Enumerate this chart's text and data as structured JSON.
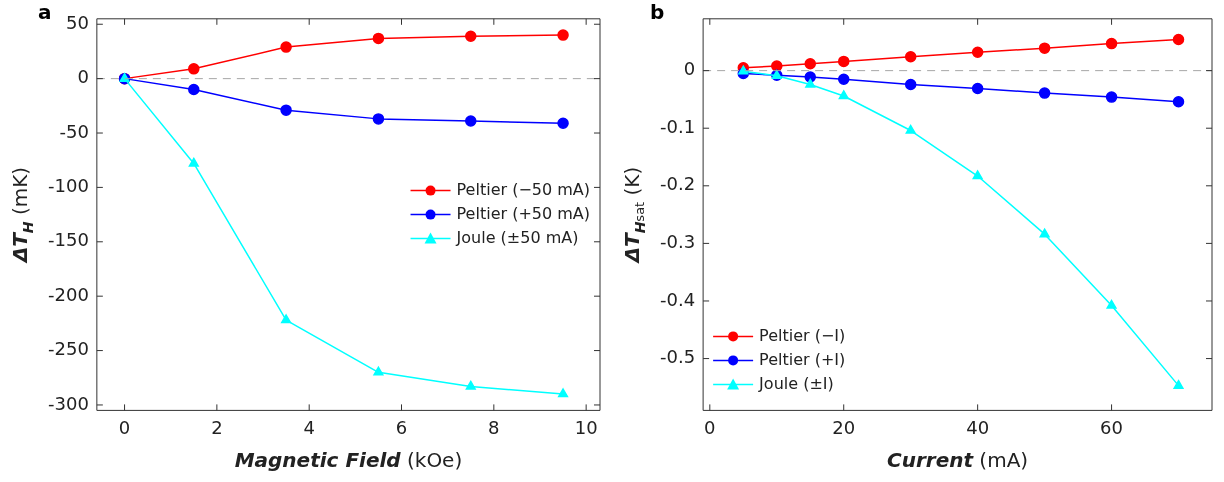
{
  "chart_data": [
    {
      "type": "line",
      "title": "a",
      "xlabel": "Magnetic Field (kOe)",
      "ylabel": "ΔT$_{H}$ (mK)",
      "x": [
        0,
        1.5,
        3.5,
        5.5,
        7.5,
        9.5
      ],
      "series": [
        {
          "name": "Peltier (−50 mA)",
          "color": "#ff0000",
          "marker": "circle",
          "values": [
            0,
            9,
            29,
            37,
            39,
            40
          ]
        },
        {
          "name": "Peltier (+50 mA)",
          "color": "#0000ff",
          "marker": "circle",
          "values": [
            0,
            -10,
            -29,
            -37,
            -39,
            -41
          ]
        },
        {
          "name": "Joule (±50 mA)",
          "color": "#00ffff",
          "marker": "triangle",
          "values": [
            0,
            -78,
            -222,
            -270,
            -283,
            -290
          ]
        }
      ],
      "xlim": [
        -0.6,
        10.3
      ],
      "xticks": [
        0,
        2,
        4,
        6,
        8,
        10
      ],
      "ylim": [
        -305,
        55
      ],
      "yticks": [
        -300,
        -250,
        -200,
        -150,
        -100,
        -50,
        0,
        50
      ],
      "ref_lines": [
        {
          "axis": "y",
          "value": 0,
          "color": "#a6a6a6",
          "line_style": "dashed"
        }
      ],
      "grid": false,
      "legend": "right",
      "line_style": "solid"
    },
    {
      "type": "line",
      "title": "b",
      "xlabel": "Current (mA)",
      "ylabel": "ΔT$_{H}$$_{sat}$ (K)",
      "x": [
        5,
        10,
        15,
        20,
        30,
        40,
        50,
        60,
        70
      ],
      "series": [
        {
          "name": "Peltier (−I)",
          "color": "#ff0000",
          "marker": "circle",
          "values": [
            0.005,
            0.008,
            0.012,
            0.016,
            0.024,
            0.032,
            0.039,
            0.047,
            0.054
          ]
        },
        {
          "name": "Peltier (+I)",
          "color": "#0000ff",
          "marker": "circle",
          "values": [
            -0.005,
            -0.008,
            -0.011,
            -0.015,
            -0.024,
            -0.031,
            -0.039,
            -0.046,
            -0.054
          ]
        },
        {
          "name": "Joule (±I)",
          "color": "#00ffff",
          "marker": "triangle",
          "values": [
            -0.001,
            -0.009,
            -0.024,
            -0.044,
            -0.104,
            -0.183,
            -0.284,
            -0.408,
            -0.547
          ]
        }
      ],
      "xlim": [
        -1,
        75
      ],
      "xticks": [
        0,
        20,
        40,
        60
      ],
      "ylim": [
        -0.59,
        0.09
      ],
      "yticks": [
        -0.5,
        -0.4,
        -0.3,
        -0.2,
        -0.1,
        0
      ],
      "ref_lines": [
        {
          "axis": "y",
          "value": 0,
          "color": "#a6a6a6",
          "line_style": "dashed"
        }
      ],
      "grid": false,
      "legend": "bottom left",
      "line_style": "solid"
    }
  ]
}
